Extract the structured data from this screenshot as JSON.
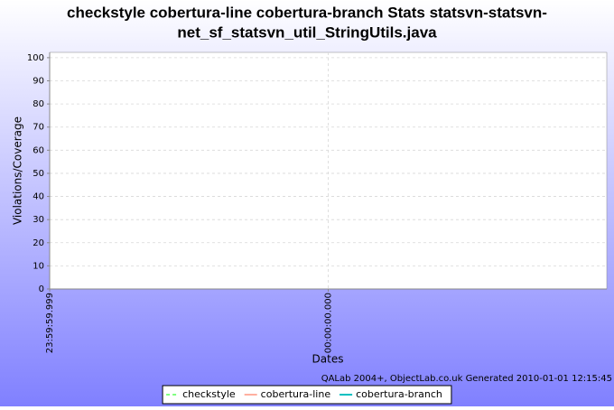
{
  "chart_data": {
    "type": "line",
    "title": [
      "checkstyle cobertura-line cobertura-branch  Stats statsvn-statsvn-",
      "net_sf_statsvn_util_StringUtils.java"
    ],
    "xlabel": "Dates",
    "ylabel": "Violations/Coverage",
    "credit": "QALab 2004+, ObjectLab.co.uk Generated 2010-01-01 12:15:45",
    "xlim": [
      -1,
      1
    ],
    "xticks": [
      {
        "value": -1,
        "label": "23:59:59.999"
      },
      {
        "value": 0,
        "label": "00:00:00.000"
      }
    ],
    "ylim": [
      0,
      102.3
    ],
    "yticks": [
      0,
      10,
      20,
      30,
      40,
      50,
      60,
      70,
      80,
      90,
      100
    ],
    "grid": true,
    "legend": "bottom",
    "series": [
      {
        "name": "checkstyle",
        "color": "#80ff80",
        "dashed": true,
        "x": [],
        "values": []
      },
      {
        "name": "cobertura-line",
        "color": "#ffb0a0",
        "dashed": false,
        "x": [],
        "values": []
      },
      {
        "name": "cobertura-branch",
        "color": "#00c0c0",
        "dashed": false,
        "x": [],
        "values": []
      }
    ]
  }
}
